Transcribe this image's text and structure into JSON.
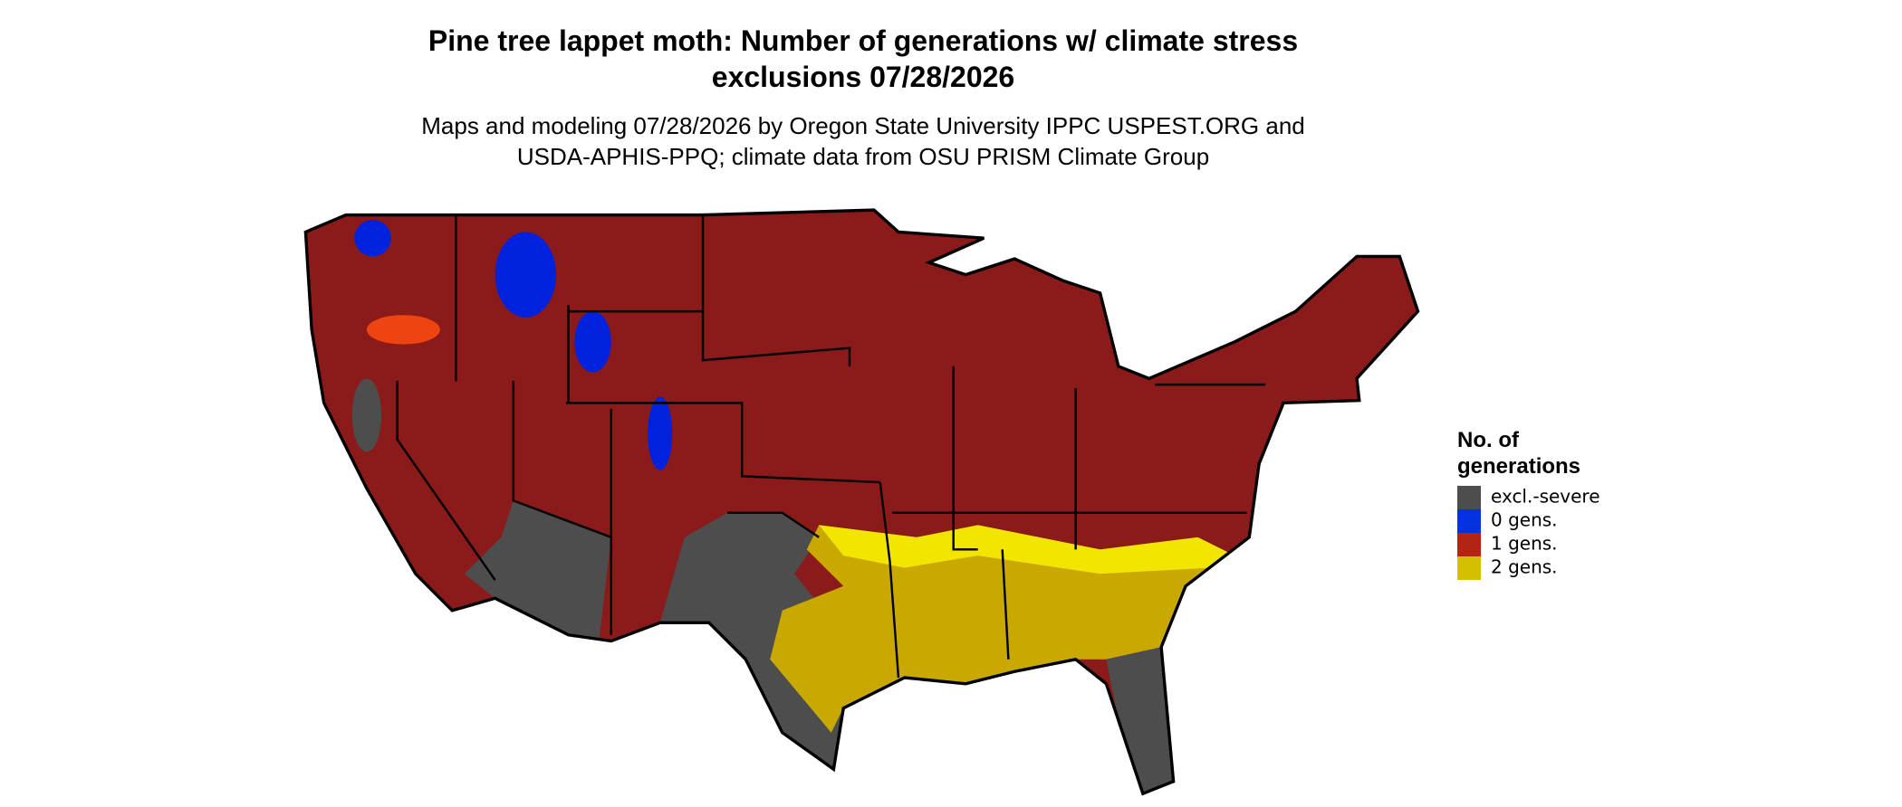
{
  "title": [
    "Pine tree lappet moth: Number of generations w/ climate stress",
    "exclusions 07/28/2026"
  ],
  "subtitle": [
    "Maps and modeling 07/28/2026 by Oregon State University IPPC USPEST.ORG and",
    "USDA-APHIS-PPQ; climate data from OSU PRISM Climate Group"
  ],
  "legend": {
    "title": [
      "No. of",
      "generations"
    ],
    "items": [
      {
        "label": "excl.-severe",
        "color": "#4d4d4d"
      },
      {
        "label": "0 gens.",
        "color": "#0033dd"
      },
      {
        "label": "1 gens.",
        "color": "#b22514"
      },
      {
        "label": "2 gens.",
        "color": "#d4c000"
      }
    ]
  }
}
